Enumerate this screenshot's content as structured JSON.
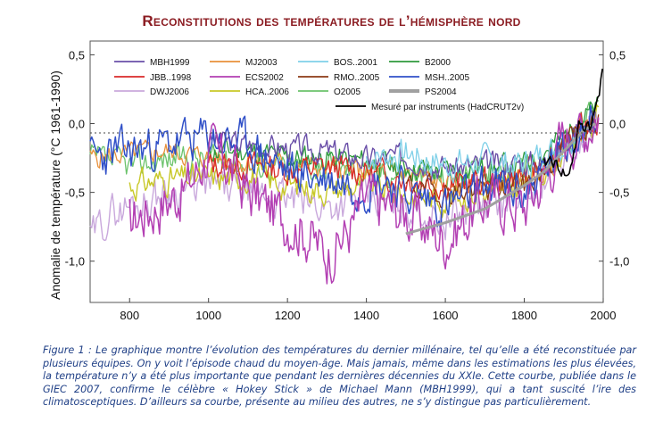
{
  "title": "Reconstitutions des températures de l’hémisphère nord",
  "caption": "Figure 1 : Le graphique montre l’évolution des températures du dernier millénaire, tel qu’elle a été reconstituée par plusieurs équipes. On y voit l’épisode chaud du moyen-âge. Mais jamais, même dans les estimations les plus élevées, la température n’y a été plus importante que pendant les dernières décennies du XXIe. Cette courbe, publiée dans le GIEC 2007, confirme le célèbre « Hokey Stick » de Michael Mann (MBH1999), qui a tant suscité l’ire des climatosceptiques. D’ailleurs sa courbe, présente au milieu des autres, ne s’y distingue pas particulièrement.",
  "chart_data": {
    "type": "line",
    "ylabel": "Anomalie de température (°C 1961-1990)",
    "xlim": [
      700,
      2000
    ],
    "ylim": [
      -1.3,
      0.6
    ],
    "xticks": [
      "800",
      "1000",
      "1200",
      "1400",
      "1600",
      "1800",
      "2000"
    ],
    "yticks_left": [
      "0,5",
      "0,0",
      "-0,5",
      "-1,0"
    ],
    "yticks_right": [
      "0,5",
      "0,0",
      "-0,5",
      "-1,0"
    ],
    "zero_line": "dotted",
    "legend_position": "top-left",
    "series": [
      {
        "name": "MBH1999",
        "color": "#6a4fa8",
        "width": 1.4,
        "start": 1000,
        "end": 1980,
        "seed": 3,
        "amp": 0.08,
        "offset": 0.02,
        "points": [
          [
            1000,
            -0.14
          ],
          [
            1100,
            -0.17
          ],
          [
            1200,
            -0.2
          ],
          [
            1300,
            -0.22
          ],
          [
            1400,
            -0.28
          ],
          [
            1500,
            -0.26
          ],
          [
            1600,
            -0.34
          ],
          [
            1700,
            -0.32
          ],
          [
            1800,
            -0.3
          ],
          [
            1850,
            -0.3
          ],
          [
            1900,
            -0.2
          ],
          [
            1940,
            0.0
          ],
          [
            1960,
            -0.05
          ],
          [
            1980,
            0.05
          ]
        ]
      },
      {
        "name": "MJ2003",
        "color": "#e8903a",
        "width": 1.3,
        "start": 700,
        "end": 1980,
        "seed": 5,
        "amp": 0.07,
        "offset": 0.0,
        "points": [
          [
            700,
            -0.25
          ],
          [
            800,
            -0.22
          ],
          [
            900,
            -0.2
          ],
          [
            1000,
            -0.25
          ],
          [
            1100,
            -0.28
          ],
          [
            1200,
            -0.3
          ],
          [
            1300,
            -0.33
          ],
          [
            1400,
            -0.35
          ],
          [
            1500,
            -0.36
          ],
          [
            1600,
            -0.45
          ],
          [
            1700,
            -0.45
          ],
          [
            1800,
            -0.42
          ],
          [
            1850,
            -0.35
          ],
          [
            1900,
            -0.22
          ],
          [
            1950,
            -0.05
          ],
          [
            1980,
            0.02
          ]
        ]
      },
      {
        "name": "BOS..2001",
        "color": "#7fd0e8",
        "width": 1.3,
        "start": 1400,
        "end": 1960,
        "seed": 7,
        "amp": 0.1,
        "offset": 0.0,
        "points": [
          [
            1400,
            -0.25
          ],
          [
            1500,
            -0.22
          ],
          [
            1600,
            -0.3
          ],
          [
            1700,
            -0.28
          ],
          [
            1800,
            -0.3
          ],
          [
            1900,
            -0.15
          ],
          [
            1940,
            0.0
          ],
          [
            1960,
            -0.05
          ]
        ]
      },
      {
        "name": "B2000",
        "color": "#2e9a3c",
        "width": 1.3,
        "start": 1000,
        "end": 1990,
        "seed": 11,
        "amp": 0.08,
        "offset": 0.0,
        "points": [
          [
            1000,
            -0.2
          ],
          [
            1100,
            -0.2
          ],
          [
            1200,
            -0.25
          ],
          [
            1300,
            -0.25
          ],
          [
            1400,
            -0.28
          ],
          [
            1500,
            -0.32
          ],
          [
            1600,
            -0.35
          ],
          [
            1700,
            -0.33
          ],
          [
            1800,
            -0.3
          ],
          [
            1900,
            -0.1
          ],
          [
            1950,
            0.05
          ],
          [
            1990,
            0.1
          ]
        ]
      },
      {
        "name": "JBB..1998",
        "color": "#d92a2a",
        "width": 1.3,
        "start": 1000,
        "end": 1990,
        "seed": 13,
        "amp": 0.09,
        "offset": 0.0,
        "points": [
          [
            1000,
            -0.3
          ],
          [
            1100,
            -0.3
          ],
          [
            1200,
            -0.34
          ],
          [
            1300,
            -0.32
          ],
          [
            1400,
            -0.35
          ],
          [
            1500,
            -0.4
          ],
          [
            1600,
            -0.45
          ],
          [
            1700,
            -0.42
          ],
          [
            1800,
            -0.38
          ],
          [
            1900,
            -0.2
          ],
          [
            1950,
            -0.02
          ],
          [
            1990,
            0.05
          ]
        ]
      },
      {
        "name": "ECS2002",
        "color": "#b33fb3",
        "width": 1.5,
        "start": 800,
        "end": 1990,
        "seed": 17,
        "amp": 0.18,
        "offset": 0.0,
        "points": [
          [
            800,
            -0.7
          ],
          [
            900,
            -0.55
          ],
          [
            950,
            -0.45
          ],
          [
            1000,
            -0.2
          ],
          [
            1050,
            -0.3
          ],
          [
            1100,
            -0.5
          ],
          [
            1200,
            -0.7
          ],
          [
            1250,
            -0.8
          ],
          [
            1300,
            -0.95
          ],
          [
            1350,
            -0.8
          ],
          [
            1400,
            -0.55
          ],
          [
            1500,
            -0.65
          ],
          [
            1600,
            -0.85
          ],
          [
            1650,
            -0.7
          ],
          [
            1700,
            -0.55
          ],
          [
            1800,
            -0.6
          ],
          [
            1850,
            -0.4
          ],
          [
            1900,
            -0.1
          ],
          [
            1950,
            -0.05
          ],
          [
            1990,
            0.1
          ]
        ]
      },
      {
        "name": "RMO..2005",
        "color": "#8b3a14",
        "width": 1.3,
        "start": 1500,
        "end": 1990,
        "seed": 19,
        "amp": 0.08,
        "offset": 0.0,
        "points": [
          [
            1500,
            -0.45
          ],
          [
            1600,
            -0.5
          ],
          [
            1700,
            -0.48
          ],
          [
            1800,
            -0.45
          ],
          [
            1850,
            -0.35
          ],
          [
            1900,
            -0.15
          ],
          [
            1950,
            -0.02
          ],
          [
            1990,
            0.05
          ]
        ]
      },
      {
        "name": "MSH..2005",
        "color": "#3050c8",
        "width": 1.5,
        "start": 700,
        "end": 1980,
        "seed": 23,
        "amp": 0.14,
        "offset": 0.0,
        "points": [
          [
            700,
            -0.25
          ],
          [
            800,
            -0.2
          ],
          [
            900,
            -0.15
          ],
          [
            1000,
            -0.1
          ],
          [
            1100,
            -0.15
          ],
          [
            1200,
            -0.35
          ],
          [
            1300,
            -0.4
          ],
          [
            1400,
            -0.45
          ],
          [
            1450,
            -0.4
          ],
          [
            1500,
            -0.5
          ],
          [
            1600,
            -0.6
          ],
          [
            1650,
            -0.55
          ],
          [
            1700,
            -0.45
          ],
          [
            1800,
            -0.5
          ],
          [
            1850,
            -0.35
          ],
          [
            1900,
            -0.2
          ],
          [
            1940,
            0.0
          ],
          [
            1980,
            0.05
          ]
        ]
      },
      {
        "name": "DWJ2006",
        "color": "#c9a8dc",
        "width": 1.4,
        "start": 700,
        "end": 1990,
        "seed": 29,
        "amp": 0.12,
        "offset": 0.0,
        "points": [
          [
            700,
            -0.85
          ],
          [
            750,
            -0.65
          ],
          [
            800,
            -0.6
          ],
          [
            900,
            -0.5
          ],
          [
            1000,
            -0.45
          ],
          [
            1100,
            -0.5
          ],
          [
            1200,
            -0.55
          ],
          [
            1300,
            -0.6
          ],
          [
            1400,
            -0.55
          ],
          [
            1500,
            -0.6
          ],
          [
            1600,
            -0.7
          ],
          [
            1700,
            -0.6
          ],
          [
            1800,
            -0.55
          ],
          [
            1900,
            -0.25
          ],
          [
            1950,
            -0.1
          ],
          [
            1990,
            0.05
          ]
        ]
      },
      {
        "name": "HCA..2006",
        "color": "#c8c828",
        "width": 1.4,
        "start": 800,
        "end": 1990,
        "seed": 31,
        "amp": 0.09,
        "offset": 0.0,
        "points": [
          [
            800,
            -0.45
          ],
          [
            900,
            -0.4
          ],
          [
            1000,
            -0.4
          ],
          [
            1100,
            -0.38
          ],
          [
            1200,
            -0.45
          ],
          [
            1300,
            -0.48
          ],
          [
            1400,
            -0.45
          ],
          [
            1500,
            -0.52
          ],
          [
            1600,
            -0.55
          ],
          [
            1700,
            -0.5
          ],
          [
            1800,
            -0.45
          ],
          [
            1900,
            -0.2
          ],
          [
            1950,
            -0.05
          ],
          [
            1990,
            0.05
          ]
        ]
      },
      {
        "name": "O2005",
        "color": "#6cc36c",
        "width": 1.3,
        "start": 700,
        "end": 1990,
        "seed": 37,
        "amp": 0.09,
        "offset": 0.0,
        "points": [
          [
            700,
            -0.25
          ],
          [
            800,
            -0.3
          ],
          [
            900,
            -0.25
          ],
          [
            1000,
            -0.25
          ],
          [
            1100,
            -0.3
          ],
          [
            1200,
            -0.3
          ],
          [
            1300,
            -0.32
          ],
          [
            1400,
            -0.35
          ],
          [
            1500,
            -0.35
          ],
          [
            1600,
            -0.4
          ],
          [
            1700,
            -0.35
          ],
          [
            1800,
            -0.32
          ],
          [
            1900,
            -0.15
          ],
          [
            1950,
            0.05
          ],
          [
            1990,
            0.15
          ]
        ]
      },
      {
        "name": "PS2004",
        "color": "#a0a0a0",
        "width": 3.0,
        "start": 1500,
        "end": 1980,
        "seed": 0,
        "amp": 0.0,
        "offset": 0.0,
        "points": [
          [
            1500,
            -0.8
          ],
          [
            1600,
            -0.72
          ],
          [
            1700,
            -0.62
          ],
          [
            1800,
            -0.45
          ],
          [
            1850,
            -0.35
          ],
          [
            1900,
            -0.2
          ],
          [
            1950,
            -0.05
          ],
          [
            1980,
            0.0
          ]
        ]
      },
      {
        "name": "Mesuré par instruments (HadCRUT2v)",
        "color": "#000000",
        "width": 1.6,
        "start": 1850,
        "end": 2000,
        "seed": 41,
        "amp": 0.05,
        "offset": 0.0,
        "points": [
          [
            1850,
            -0.3
          ],
          [
            1870,
            -0.25
          ],
          [
            1880,
            -0.3
          ],
          [
            1900,
            -0.35
          ],
          [
            1910,
            -0.4
          ],
          [
            1930,
            -0.15
          ],
          [
            1940,
            0.0
          ],
          [
            1950,
            -0.05
          ],
          [
            1960,
            0.02
          ],
          [
            1970,
            -0.02
          ],
          [
            1980,
            0.1
          ],
          [
            1990,
            0.25
          ],
          [
            2000,
            0.5
          ]
        ]
      }
    ]
  }
}
